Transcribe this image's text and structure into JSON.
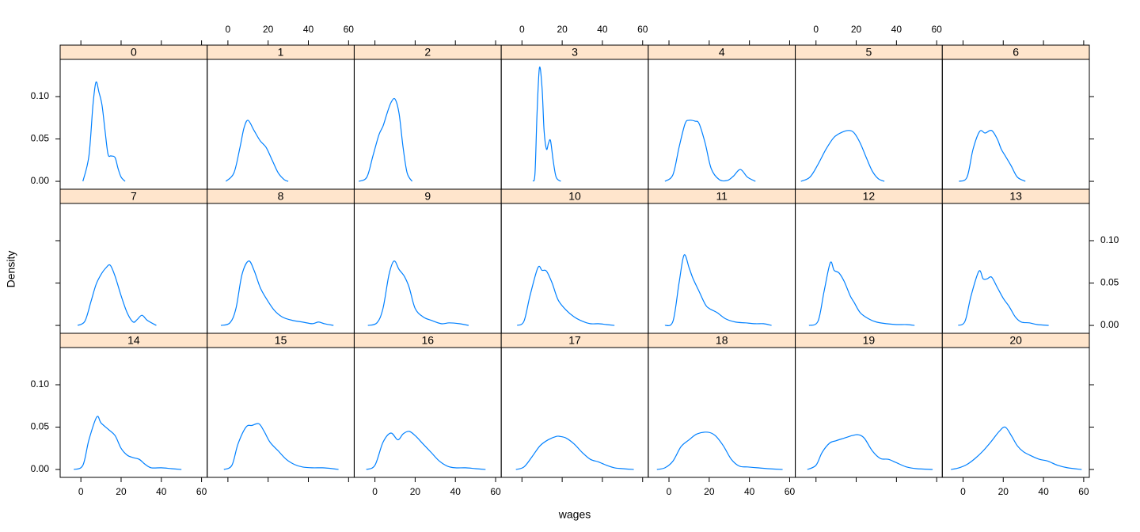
{
  "chart_data": {
    "type": "line",
    "xlabel": "wages",
    "ylabel": "Density",
    "color": "#0080ff",
    "strip_color": "#ffe5cc",
    "xlim": [
      -10.3,
      62.8
    ],
    "ylim": [
      -0.0093,
      0.1439
    ],
    "xticks": [
      0,
      20,
      40,
      60
    ],
    "yticks": [
      {
        "value": 0,
        "label": "0.00"
      },
      {
        "value": 0.05,
        "label": "0.05"
      },
      {
        "value": 0.1,
        "label": "0.10"
      }
    ],
    "panels": [
      {
        "name": "0",
        "x": [
          1,
          4,
          6,
          7.5,
          9,
          10.5,
          12,
          13.5,
          15,
          17,
          18.5,
          20,
          22
        ],
        "values": [
          0,
          0.03,
          0.09,
          0.117,
          0.105,
          0.09,
          0.06,
          0.032,
          0.03,
          0.028,
          0.015,
          0.005,
          0
        ]
      },
      {
        "name": "1",
        "x": [
          -1,
          3,
          6,
          8,
          10,
          13,
          16,
          19,
          22,
          25,
          28,
          30
        ],
        "values": [
          0,
          0.01,
          0.04,
          0.063,
          0.072,
          0.06,
          0.048,
          0.04,
          0.025,
          0.01,
          0.002,
          0
        ]
      },
      {
        "name": "2",
        "x": [
          -8,
          -4,
          -1,
          2,
          4,
          6,
          8,
          10,
          12,
          14,
          16,
          18.5
        ],
        "values": [
          0,
          0.005,
          0.03,
          0.055,
          0.065,
          0.08,
          0.093,
          0.097,
          0.08,
          0.04,
          0.01,
          0
        ]
      },
      {
        "name": "3",
        "x": [
          5.5,
          6.5,
          7.5,
          8.7,
          10,
          11,
          12.2,
          13.2,
          14.2,
          15.5,
          17,
          19.3
        ],
        "values": [
          0,
          0.01,
          0.08,
          0.134,
          0.11,
          0.06,
          0.038,
          0.045,
          0.048,
          0.025,
          0.005,
          0
        ]
      },
      {
        "name": "4",
        "x": [
          -2,
          2,
          5,
          8,
          10,
          13,
          15,
          18,
          21,
          25,
          29,
          32,
          35.5,
          39,
          43
        ],
        "values": [
          0,
          0.008,
          0.04,
          0.068,
          0.072,
          0.071,
          0.068,
          0.045,
          0.015,
          0.002,
          0.001,
          0.006,
          0.014,
          0.005,
          0
        ]
      },
      {
        "name": "5",
        "x": [
          -7.5,
          -3,
          1,
          5,
          9,
          13,
          16.5,
          19,
          22,
          25,
          28,
          31,
          34
        ],
        "values": [
          0,
          0.005,
          0.02,
          0.038,
          0.052,
          0.058,
          0.06,
          0.057,
          0.045,
          0.028,
          0.012,
          0.003,
          0
        ]
      },
      {
        "name": "6",
        "x": [
          -2,
          2,
          5,
          8.3,
          11,
          14.2,
          17,
          19,
          21,
          24,
          27,
          31
        ],
        "values": [
          0,
          0.005,
          0.038,
          0.059,
          0.057,
          0.06,
          0.05,
          0.038,
          0.03,
          0.018,
          0.005,
          0
        ]
      },
      {
        "name": "7",
        "x": [
          -1.6,
          2,
          5,
          7.5,
          10,
          12.5,
          14.6,
          17,
          20,
          23,
          26,
          28,
          30.4,
          33,
          37.5
        ],
        "values": [
          0,
          0.005,
          0.028,
          0.048,
          0.06,
          0.068,
          0.071,
          0.058,
          0.035,
          0.015,
          0.004,
          0.007,
          0.012,
          0.006,
          0
        ]
      },
      {
        "name": "8",
        "x": [
          -3.5,
          1,
          4,
          7,
          10.3,
          13,
          16,
          19,
          23,
          27,
          32,
          37,
          42,
          45,
          48,
          52.5
        ],
        "values": [
          0,
          0.003,
          0.02,
          0.06,
          0.076,
          0.065,
          0.045,
          0.032,
          0.018,
          0.01,
          0.006,
          0.004,
          0.002,
          0.004,
          0.002,
          0
        ]
      },
      {
        "name": "9",
        "x": [
          -3.5,
          1,
          4,
          7,
          9.5,
          12,
          14.6,
          17,
          20,
          24,
          28,
          33,
          37,
          42,
          46.6
        ],
        "values": [
          0,
          0.003,
          0.02,
          0.06,
          0.076,
          0.066,
          0.058,
          0.045,
          0.02,
          0.01,
          0.006,
          0.002,
          0.003,
          0.002,
          0
        ]
      },
      {
        "name": "10",
        "x": [
          -2.4,
          1,
          4,
          7.9,
          10,
          12.2,
          15,
          18,
          22,
          26,
          30,
          34,
          38,
          42,
          46
        ],
        "values": [
          0,
          0.005,
          0.035,
          0.068,
          0.065,
          0.064,
          0.05,
          0.03,
          0.018,
          0.01,
          0.005,
          0.002,
          0.002,
          0.001,
          0
        ]
      },
      {
        "name": "11",
        "x": [
          -2,
          2,
          5,
          7.5,
          10,
          12,
          15,
          18,
          20,
          24,
          28,
          33,
          38,
          43,
          47,
          51
        ],
        "values": [
          0,
          0.005,
          0.05,
          0.083,
          0.068,
          0.055,
          0.04,
          0.025,
          0.02,
          0.015,
          0.008,
          0.004,
          0.003,
          0.002,
          0.002,
          0
        ]
      },
      {
        "name": "12",
        "x": [
          -3.5,
          1,
          4,
          7.1,
          9,
          11.4,
          14,
          17,
          19,
          22,
          26,
          30,
          35,
          40,
          45,
          49
        ],
        "values": [
          0,
          0.005,
          0.04,
          0.074,
          0.065,
          0.062,
          0.052,
          0.035,
          0.027,
          0.015,
          0.008,
          0.004,
          0.002,
          0.001,
          0.001,
          0
        ]
      },
      {
        "name": "13",
        "x": [
          -2.4,
          1,
          4,
          7.9,
          10,
          12,
          14.2,
          17,
          20,
          23,
          26,
          29,
          33,
          37,
          42.6
        ],
        "values": [
          0,
          0.005,
          0.035,
          0.064,
          0.055,
          0.055,
          0.057,
          0.045,
          0.032,
          0.022,
          0.01,
          0.004,
          0.003,
          0.001,
          0
        ]
      },
      {
        "name": "14",
        "x": [
          -3.5,
          1,
          4,
          7.9,
          10,
          13.8,
          17,
          20,
          23,
          26,
          29,
          32,
          35,
          40,
          45,
          50
        ],
        "values": [
          0,
          0.005,
          0.035,
          0.062,
          0.055,
          0.047,
          0.04,
          0.025,
          0.017,
          0.014,
          0.012,
          0.006,
          0.002,
          0.002,
          0.001,
          0
        ]
      },
      {
        "name": "15",
        "x": [
          -2,
          2,
          5,
          9,
          12,
          15.4,
          18,
          21,
          25,
          29,
          33,
          37,
          42,
          47,
          52,
          55
        ],
        "values": [
          0,
          0.005,
          0.03,
          0.05,
          0.052,
          0.054,
          0.045,
          0.032,
          0.022,
          0.012,
          0.006,
          0.003,
          0.002,
          0.002,
          0.001,
          0
        ]
      },
      {
        "name": "16",
        "x": [
          -4.3,
          0,
          4,
          7.9,
          11.4,
          14,
          17,
          20,
          24,
          28,
          32,
          36,
          40,
          45,
          50,
          55
        ],
        "values": [
          0,
          0.005,
          0.032,
          0.043,
          0.035,
          0.042,
          0.045,
          0.04,
          0.03,
          0.02,
          0.01,
          0.004,
          0.002,
          0.002,
          0.001,
          0
        ]
      },
      {
        "name": "17",
        "x": [
          -3,
          1,
          5,
          9,
          13,
          17,
          19,
          22,
          26,
          30,
          34,
          38,
          42,
          46,
          50,
          55.6
        ],
        "values": [
          0,
          0.003,
          0.015,
          0.028,
          0.035,
          0.039,
          0.039,
          0.037,
          0.03,
          0.02,
          0.012,
          0.009,
          0.005,
          0.002,
          0.001,
          0
        ]
      },
      {
        "name": "18",
        "x": [
          -6,
          -2,
          2,
          6,
          10,
          14,
          19.3,
          23,
          27,
          31,
          35,
          39,
          44,
          49,
          56.5
        ],
        "values": [
          0,
          0.002,
          0.01,
          0.027,
          0.035,
          0.042,
          0.044,
          0.04,
          0.028,
          0.012,
          0.004,
          0.003,
          0.002,
          0.001,
          0
        ]
      },
      {
        "name": "19",
        "x": [
          -4.3,
          0,
          3,
          6.7,
          10,
          14,
          18,
          21,
          24,
          28,
          32,
          36,
          40,
          45,
          50,
          58
        ],
        "values": [
          0,
          0.005,
          0.02,
          0.031,
          0.034,
          0.037,
          0.04,
          0.041,
          0.037,
          0.022,
          0.013,
          0.012,
          0.008,
          0.003,
          0.001,
          0
        ]
      },
      {
        "name": "20",
        "x": [
          -6,
          -2,
          2,
          6,
          10,
          14,
          18,
          21,
          24,
          27,
          30,
          34,
          38,
          42,
          47,
          52,
          59
        ],
        "values": [
          0,
          0.002,
          0.006,
          0.013,
          0.022,
          0.033,
          0.045,
          0.05,
          0.04,
          0.028,
          0.021,
          0.016,
          0.012,
          0.01,
          0.005,
          0.002,
          0
        ]
      }
    ]
  }
}
